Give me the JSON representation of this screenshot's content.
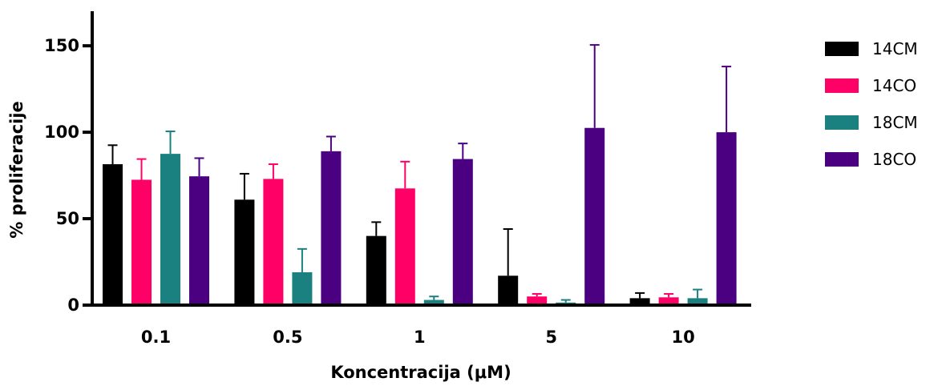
{
  "chart_data": {
    "type": "bar",
    "xlabel": "Koncentracija (μM)",
    "ylabel": "% proliferacije",
    "categories": [
      "0.1",
      "0.5",
      "1",
      "5",
      "10"
    ],
    "ylim": [
      0,
      170
    ],
    "yticks": [
      0,
      50,
      100,
      150
    ],
    "series": [
      {
        "name": "14CM",
        "color": "#000000",
        "values": [
          81.5,
          61,
          40,
          17,
          4
        ],
        "errors": [
          11,
          15,
          8,
          27,
          3
        ]
      },
      {
        "name": "14CO",
        "color": "#ff0066",
        "values": [
          72.5,
          73,
          67.5,
          5,
          4.5
        ],
        "errors": [
          12,
          8.5,
          15.5,
          1.5,
          2
        ]
      },
      {
        "name": "18CM",
        "color": "#1a8080",
        "values": [
          87.5,
          19,
          3,
          1.5,
          4
        ],
        "errors": [
          13,
          13.5,
          2,
          1.5,
          5
        ]
      },
      {
        "name": "18CO",
        "color": "#4b0082",
        "values": [
          74.5,
          89,
          84.5,
          102.5,
          100
        ],
        "errors": [
          10.5,
          8.5,
          9,
          48,
          38
        ]
      }
    ],
    "grid": false,
    "legend_position": "right"
  }
}
